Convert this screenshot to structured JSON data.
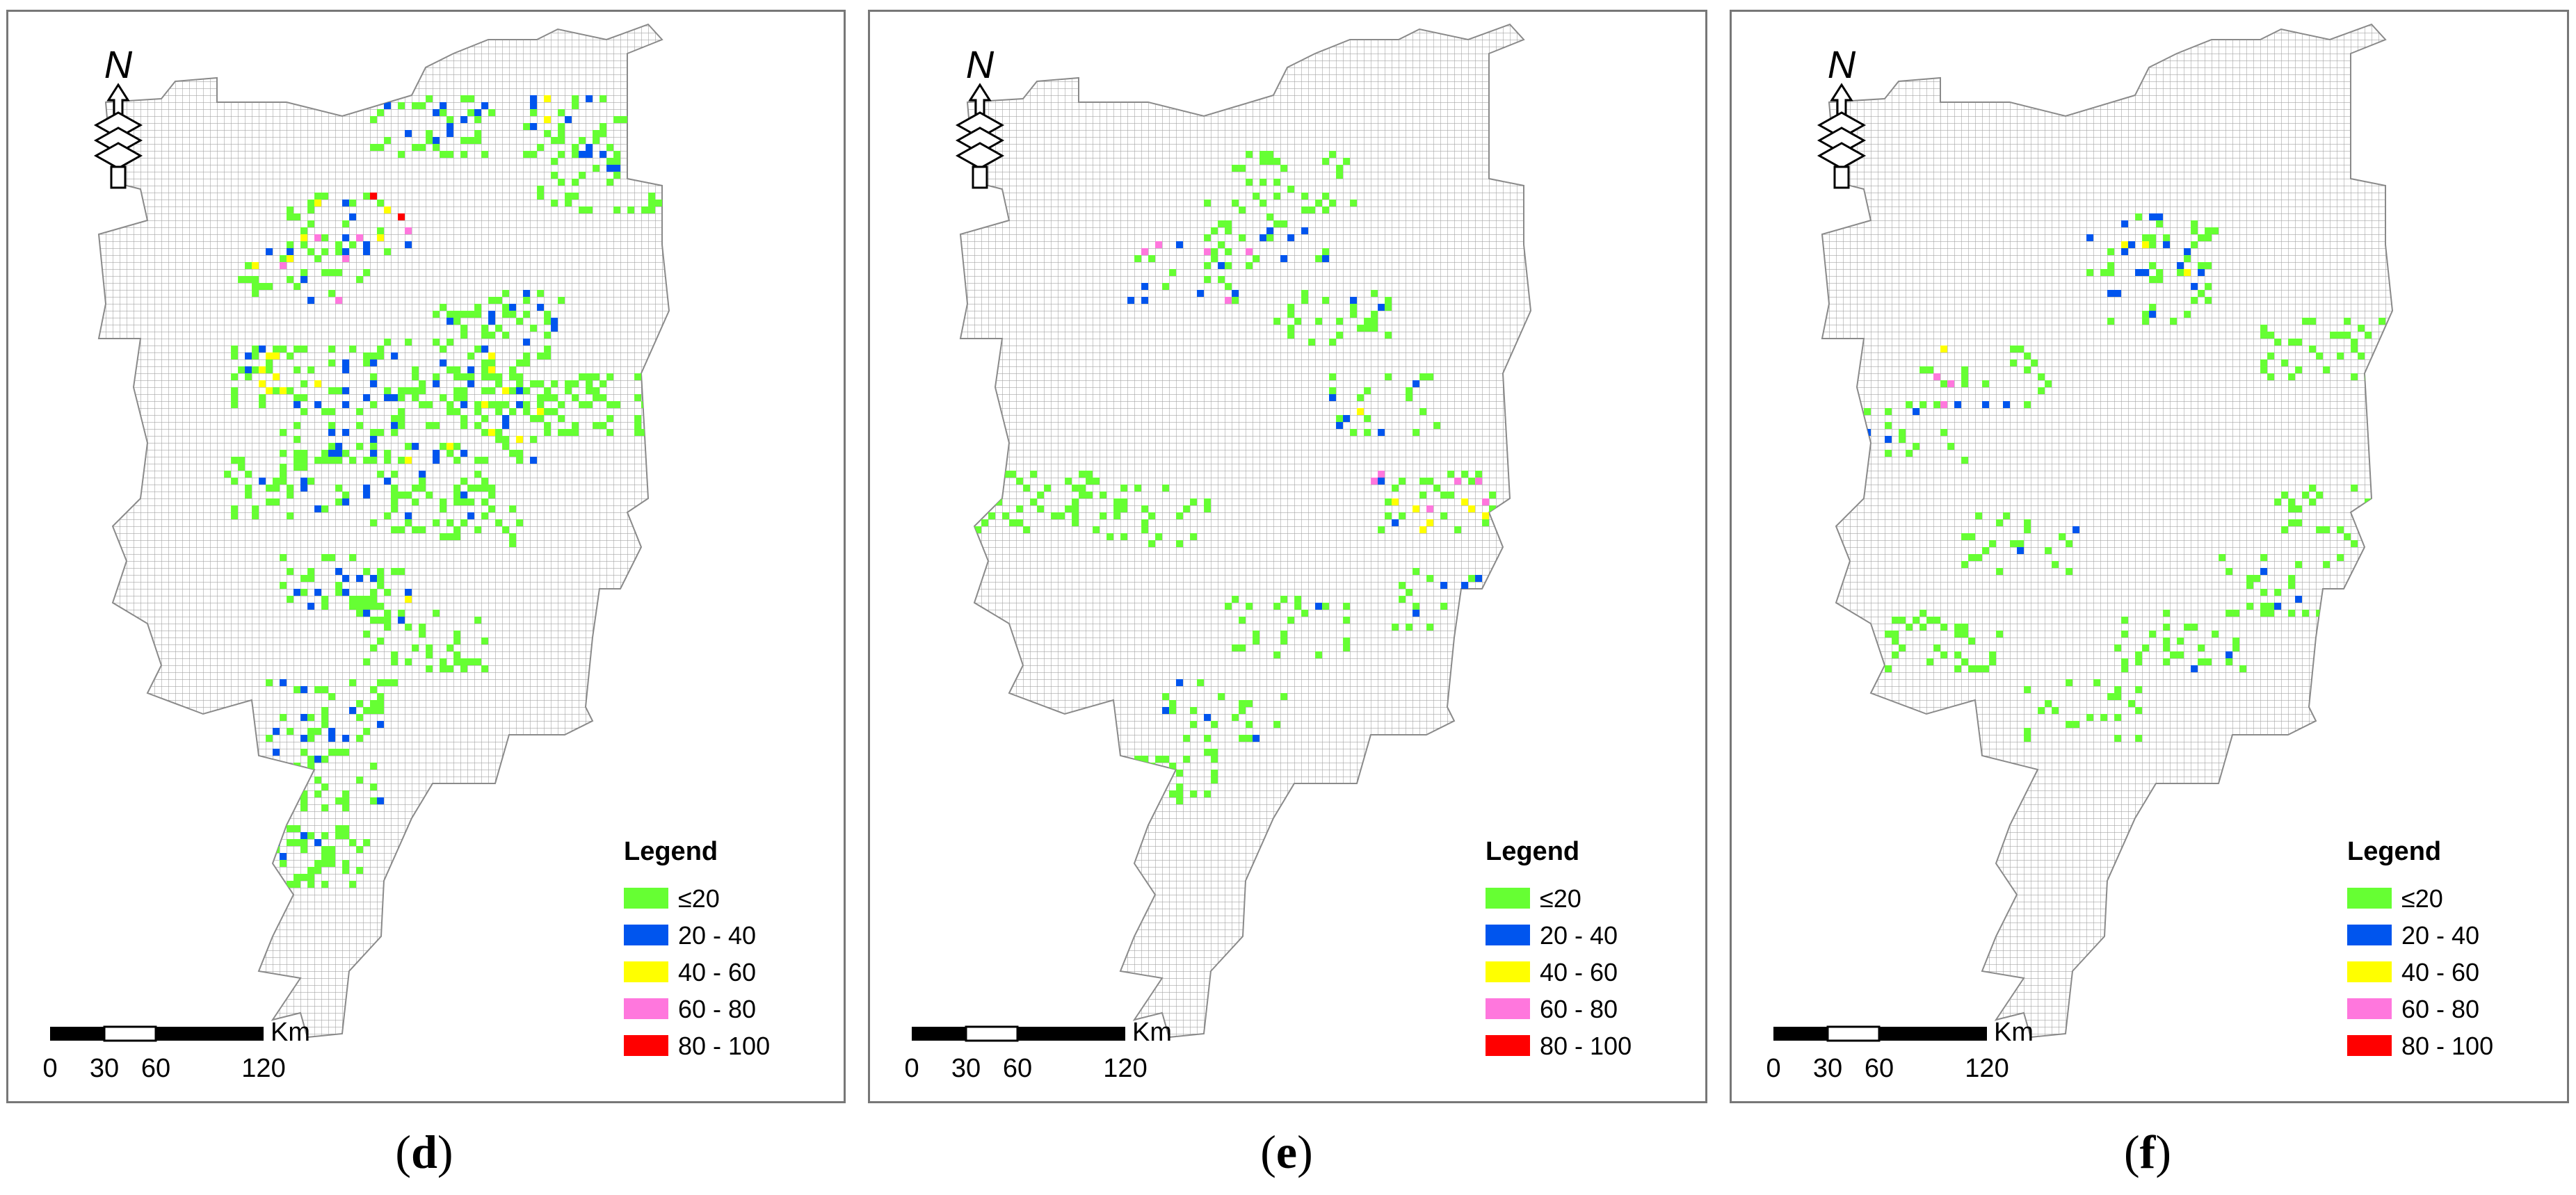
{
  "panels": [
    {
      "id": "d",
      "caption_letter": "d",
      "distribution": "dense"
    },
    {
      "id": "e",
      "caption_letter": "e",
      "distribution": "sparse"
    },
    {
      "id": "f",
      "caption_letter": "f",
      "distribution": "sparser"
    }
  ],
  "north_arrow": {
    "label": "N"
  },
  "legend": {
    "title": "Legend",
    "classes": [
      {
        "label": "≤20",
        "color": "#66ff33"
      },
      {
        "label": "20 - 40",
        "color": "#0055ee"
      },
      {
        "label": "40 - 60",
        "color": "#ffff00"
      },
      {
        "label": "60 - 80",
        "color": "#ff77dd"
      },
      {
        "label": "80 - 100",
        "color": "#ff0000"
      }
    ]
  },
  "scale_bar": {
    "unit": "Km",
    "ticks": [
      "0",
      "30",
      "60",
      "120"
    ]
  },
  "grid_color": "#a6a6a6"
}
